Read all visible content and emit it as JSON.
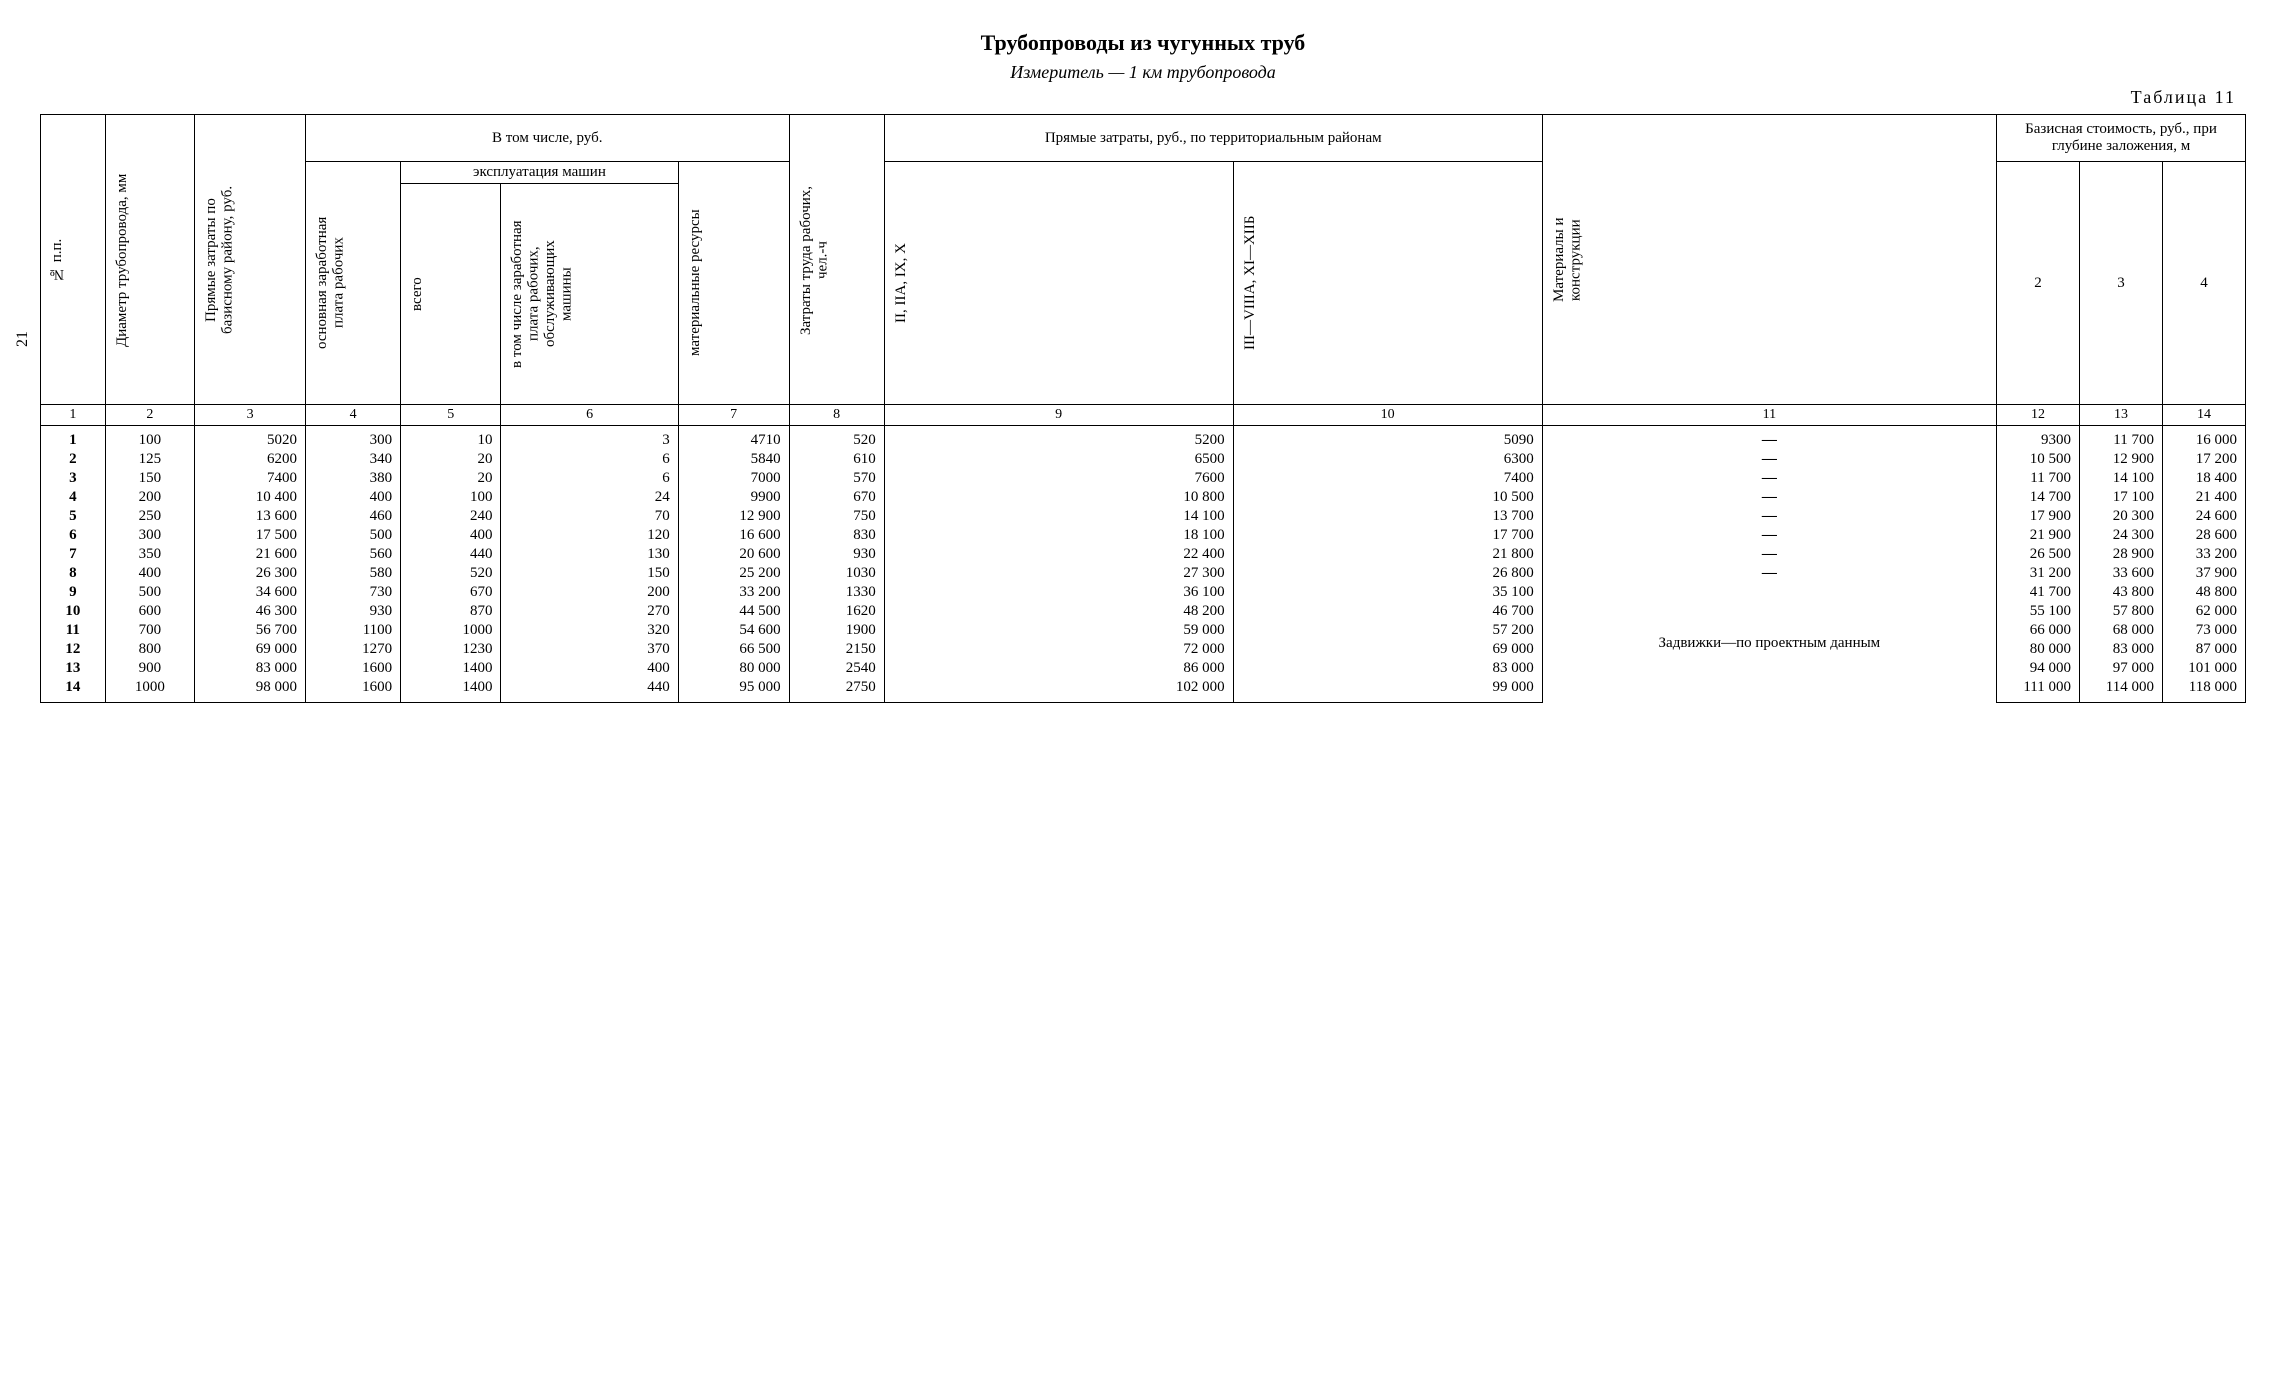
{
  "title": "Трубопроводы из чугунных труб",
  "subtitle": "Измеритель — 1 км трубопровода",
  "table_label": "Таблица 11",
  "page_number": "21",
  "headers": {
    "col1": "№ п.п.",
    "col2": "Диаметр трубопровода, мм",
    "col3": "Прямые затраты по базисному району, руб.",
    "group_incl": "В том числе, руб.",
    "col4": "основная заработная плата рабочих",
    "group_expl": "эксплуатация машин",
    "col5": "всего",
    "col6": "в том числе заработная плата рабочих, обслуживающих машины",
    "col7": "материальные ресурсы",
    "col8": "Затраты труда рабочих, чел.-ч",
    "group_terr": "Прямые затраты, руб., по территориальным районам",
    "col9": "II, IIА, IX, X",
    "col10": "III—VIIIА, XI—XIIБ",
    "col11": "Материалы и конструкции",
    "group_depth": "Базисная стоимость, руб., при глубине заложения, м",
    "col12": "2",
    "col13": "3",
    "col14": "4"
  },
  "colnums": [
    "1",
    "2",
    "3",
    "4",
    "5",
    "6",
    "7",
    "8",
    "9",
    "10",
    "11",
    "12",
    "13",
    "14"
  ],
  "note_col11": "Задвижки—по проектным данным",
  "rows": [
    {
      "n": "1",
      "d": "100",
      "c3": "5020",
      "c4": "300",
      "c5": "10",
      "c6": "3",
      "c7": "4710",
      "c8": "520",
      "c9": "5200",
      "c10": "5090",
      "c11": "—",
      "c12": "9300",
      "c13": "11 700",
      "c14": "16 000"
    },
    {
      "n": "2",
      "d": "125",
      "c3": "6200",
      "c4": "340",
      "c5": "20",
      "c6": "6",
      "c7": "5840",
      "c8": "610",
      "c9": "6500",
      "c10": "6300",
      "c11": "—",
      "c12": "10 500",
      "c13": "12 900",
      "c14": "17 200"
    },
    {
      "n": "3",
      "d": "150",
      "c3": "7400",
      "c4": "380",
      "c5": "20",
      "c6": "6",
      "c7": "7000",
      "c8": "570",
      "c9": "7600",
      "c10": "7400",
      "c11": "—",
      "c12": "11 700",
      "c13": "14 100",
      "c14": "18 400"
    },
    {
      "n": "4",
      "d": "200",
      "c3": "10 400",
      "c4": "400",
      "c5": "100",
      "c6": "24",
      "c7": "9900",
      "c8": "670",
      "c9": "10 800",
      "c10": "10 500",
      "c11": "—",
      "c12": "14 700",
      "c13": "17 100",
      "c14": "21 400"
    },
    {
      "n": "5",
      "d": "250",
      "c3": "13 600",
      "c4": "460",
      "c5": "240",
      "c6": "70",
      "c7": "12 900",
      "c8": "750",
      "c9": "14 100",
      "c10": "13 700",
      "c11": "—",
      "c12": "17 900",
      "c13": "20 300",
      "c14": "24 600"
    },
    {
      "n": "6",
      "d": "300",
      "c3": "17 500",
      "c4": "500",
      "c5": "400",
      "c6": "120",
      "c7": "16 600",
      "c8": "830",
      "c9": "18 100",
      "c10": "17 700",
      "c11": "—",
      "c12": "21 900",
      "c13": "24 300",
      "c14": "28 600"
    },
    {
      "n": "7",
      "d": "350",
      "c3": "21 600",
      "c4": "560",
      "c5": "440",
      "c6": "130",
      "c7": "20 600",
      "c8": "930",
      "c9": "22 400",
      "c10": "21 800",
      "c11": "—",
      "c12": "26 500",
      "c13": "28 900",
      "c14": "33 200"
    },
    {
      "n": "8",
      "d": "400",
      "c3": "26 300",
      "c4": "580",
      "c5": "520",
      "c6": "150",
      "c7": "25 200",
      "c8": "1030",
      "c9": "27 300",
      "c10": "26 800",
      "c11": "—",
      "c12": "31 200",
      "c13": "33 600",
      "c14": "37 900"
    },
    {
      "n": "9",
      "d": "500",
      "c3": "34 600",
      "c4": "730",
      "c5": "670",
      "c6": "200",
      "c7": "33 200",
      "c8": "1330",
      "c9": "36 100",
      "c10": "35 100",
      "c11": "",
      "c12": "41 700",
      "c13": "43 800",
      "c14": "48 800"
    },
    {
      "n": "10",
      "d": "600",
      "c3": "46 300",
      "c4": "930",
      "c5": "870",
      "c6": "270",
      "c7": "44 500",
      "c8": "1620",
      "c9": "48 200",
      "c10": "46 700",
      "c11": "",
      "c12": "55 100",
      "c13": "57 800",
      "c14": "62 000"
    },
    {
      "n": "11",
      "d": "700",
      "c3": "56 700",
      "c4": "1100",
      "c5": "1000",
      "c6": "320",
      "c7": "54 600",
      "c8": "1900",
      "c9": "59 000",
      "c10": "57 200",
      "c11": "",
      "c12": "66 000",
      "c13": "68 000",
      "c14": "73 000"
    },
    {
      "n": "12",
      "d": "800",
      "c3": "69 000",
      "c4": "1270",
      "c5": "1230",
      "c6": "370",
      "c7": "66 500",
      "c8": "2150",
      "c9": "72 000",
      "c10": "69 000",
      "c11": "",
      "c12": "80 000",
      "c13": "83 000",
      "c14": "87 000"
    },
    {
      "n": "13",
      "d": "900",
      "c3": "83 000",
      "c4": "1600",
      "c5": "1400",
      "c6": "400",
      "c7": "80 000",
      "c8": "2540",
      "c9": "86 000",
      "c10": "83 000",
      "c11": "",
      "c12": "94 000",
      "c13": "97 000",
      "c14": "101 000"
    },
    {
      "n": "14",
      "d": "1000",
      "c3": "98 000",
      "c4": "1600",
      "c5": "1400",
      "c6": "440",
      "c7": "95 000",
      "c8": "2750",
      "c9": "102 000",
      "c10": "99 000",
      "c11": "",
      "c12": "111 000",
      "c13": "114 000",
      "c14": "118 000"
    }
  ],
  "style": {
    "font_family": "Times New Roman, serif",
    "bg": "#ffffff",
    "fg": "#000000",
    "title_fontsize": 22,
    "subtitle_fontsize": 18,
    "table_fontsize": 15,
    "border_color": "#000000"
  }
}
